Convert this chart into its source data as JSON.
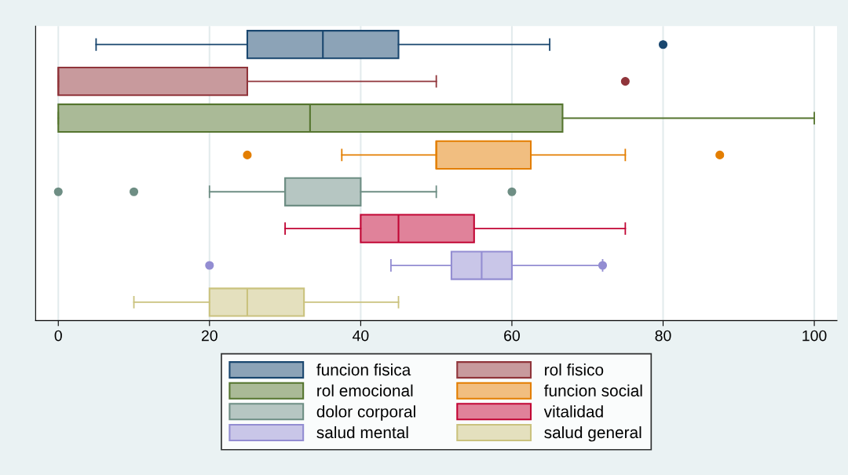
{
  "chart_data": {
    "type": "box",
    "orientation": "horizontal",
    "categories": [
      null,
      null,
      null,
      null,
      null,
      null,
      null,
      null
    ],
    "xlim": [
      -3,
      103
    ],
    "xticks": [
      0,
      20,
      40,
      60,
      80,
      100
    ],
    "grid": "x",
    "legend": "bottom",
    "tick_labels": "x",
    "series": [
      {
        "name": "funcion fisica",
        "color": "#1a476f",
        "boxes": [
          {
            "low": 5,
            "q1": 25,
            "median": 35,
            "q3": 45,
            "high": 65,
            "outliers": [
              80
            ]
          },
          null,
          null,
          null,
          null,
          null,
          null,
          null
        ]
      },
      {
        "name": "rol fisico",
        "color": "#90353b",
        "boxes": [
          null,
          {
            "low": 0,
            "q1": 0,
            "median": 0,
            "q3": 25,
            "high": 50,
            "outliers": [
              75
            ]
          },
          null,
          null,
          null,
          null,
          null,
          null
        ]
      },
      {
        "name": "rol emocional",
        "color": "#55752f",
        "boxes": [
          null,
          null,
          {
            "low": 0,
            "q1": 0,
            "median": 33.3,
            "q3": 66.7,
            "high": 100
          },
          null,
          null,
          null,
          null,
          null
        ]
      },
      {
        "name": "funcion social",
        "color": "#e37e00",
        "boxes": [
          null,
          null,
          null,
          {
            "low": 37.5,
            "q1": 50,
            "median": 50,
            "q3": 62.5,
            "high": 75,
            "outliers": [
              25,
              87.5
            ]
          },
          null,
          null,
          null,
          null
        ]
      },
      {
        "name": "dolor corporal",
        "color": "#6e8e84",
        "boxes": [
          null,
          null,
          null,
          null,
          {
            "low": 20,
            "q1": 30,
            "median": 30,
            "q3": 40,
            "high": 50,
            "outliers": [
              0,
              10,
              60
            ]
          },
          null,
          null,
          null
        ]
      },
      {
        "name": "vitalidad",
        "color": "#c10534",
        "boxes": [
          null,
          null,
          null,
          null,
          null,
          {
            "low": 30,
            "q1": 40,
            "median": 45,
            "q3": 55,
            "high": 75
          },
          null,
          null
        ]
      },
      {
        "name": "salud mental",
        "color": "#938dd2",
        "boxes": [
          null,
          null,
          null,
          null,
          null,
          null,
          {
            "low": 44,
            "q1": 52,
            "median": 56,
            "q3": 60,
            "high": 72,
            "outliers": [
              20,
              72
            ]
          },
          null
        ]
      },
      {
        "name": "salud general",
        "color": "#cac27e",
        "boxes": [
          null,
          null,
          null,
          null,
          null,
          null,
          null,
          {
            "low": 10,
            "q1": 20,
            "median": 25,
            "q3": 32.5,
            "high": 45
          }
        ]
      }
    ]
  }
}
